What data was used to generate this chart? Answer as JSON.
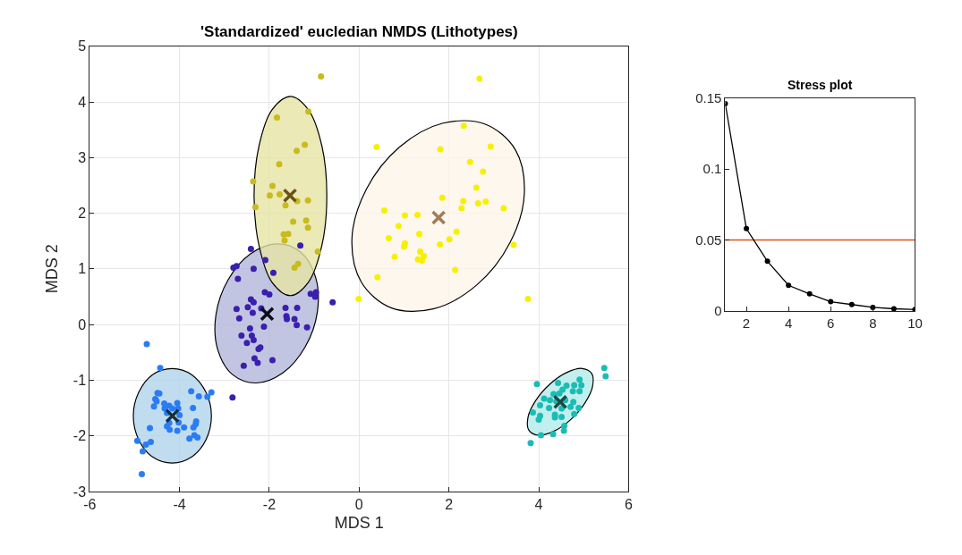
{
  "chart_data": [
    {
      "type": "scatter",
      "title": "'Standardized' eucledian NMDS (Lithotypes)",
      "xlabel": "MDS 1",
      "ylabel": "MDS 2",
      "xlim": [
        -6,
        6
      ],
      "xticks": [
        -6,
        -4,
        -2,
        0,
        2,
        4,
        6
      ],
      "ylim": [
        -3,
        5
      ],
      "yticks": [
        -3,
        -2,
        -1,
        0,
        1,
        2,
        3,
        4,
        5
      ],
      "grid": true,
      "series": [
        {
          "type": "area",
          "color": "#b0d3eb",
          "x": [
            -3.29,
            -3.41,
            -3.73,
            -4.16,
            -4.6,
            -4.91,
            -5.03,
            -4.91,
            -4.6,
            -4.16,
            -3.73,
            -3.41,
            -3.29
          ],
          "values": [
            -1.64,
            -1.22,
            -0.9,
            -0.79,
            -0.9,
            -1.22,
            -1.64,
            -2.07,
            -2.38,
            -2.49,
            -2.38,
            -2.07,
            -1.64
          ]
        },
        {
          "type": "area",
          "color": "#b1b7db",
          "x": [
            -1.3,
            -1.83,
            -2.42,
            -2.92,
            -3.19,
            -3.15,
            -2.82,
            -2.29,
            -1.7,
            -1.2,
            -0.93,
            -0.97,
            -1.3
          ],
          "values": [
            1.3,
            1.45,
            1.27,
            0.8,
            0.17,
            -0.45,
            -0.9,
            -1.05,
            -0.87,
            -0.4,
            0.23,
            0.85,
            1.3
          ]
        },
        {
          "type": "area",
          "color": "#e6e4a4",
          "x": [
            -0.72,
            -0.83,
            -1.13,
            -1.53,
            -1.94,
            -2.23,
            -2.34,
            -2.23,
            -1.94,
            -1.53,
            -1.13,
            -0.83,
            -0.72
          ],
          "values": [
            2.31,
            3.21,
            3.86,
            4.1,
            3.86,
            3.21,
            2.31,
            1.42,
            0.76,
            0.52,
            0.76,
            1.42,
            2.31
          ]
        },
        {
          "type": "area",
          "color": "#fdf5e8",
          "x": [
            3.48,
            2.81,
            1.87,
            0.9,
            0.16,
            -0.16,
            0.05,
            0.71,
            1.65,
            2.62,
            3.36,
            3.68,
            3.48
          ],
          "values": [
            3.14,
            3.6,
            3.62,
            3.19,
            2.43,
            1.54,
            0.76,
            0.3,
            0.28,
            0.71,
            1.47,
            2.36,
            3.14
          ]
        },
        {
          "type": "area",
          "color": "#b2ebe8",
          "x": [
            5.18,
            4.97,
            4.63,
            4.25,
            3.93,
            3.76,
            3.78,
            3.99,
            4.33,
            4.71,
            5.03,
            5.2,
            5.18
          ],
          "values": [
            -0.88,
            -0.79,
            -0.86,
            -1.07,
            -1.37,
            -1.67,
            -1.9,
            -1.99,
            -1.92,
            -1.71,
            -1.41,
            -1.11,
            -0.88
          ]
        },
        {
          "type": "scatter",
          "marker": "circle",
          "color": "#2b7bf6",
          "x": [
            -4.73,
            -4.43,
            -4.49,
            -4.45,
            -4.54,
            -4.51,
            -4.57,
            -4.34,
            -4.23,
            -4.05,
            -4.33,
            -4.16,
            -4.03,
            -4.28,
            -4.0,
            -4.23,
            -4.28,
            -4.22,
            -4.05,
            -4.02,
            -3.9,
            -3.74,
            -3.57,
            -3.38,
            -3.29,
            -3.7,
            -3.63,
            -3.64,
            -3.69,
            -3.67,
            -3.6,
            -3.78,
            -4.66,
            -4.94,
            -4.75,
            -4.64,
            -4.82,
            -4.84
          ],
          "values": [
            -0.35,
            -0.78,
            -1.23,
            -1.24,
            -1.34,
            -1.38,
            -1.47,
            -1.42,
            -1.46,
            -1.41,
            -1.51,
            -1.51,
            -1.51,
            -1.59,
            -1.63,
            -1.77,
            -1.83,
            -1.89,
            -1.91,
            -1.76,
            -1.85,
            -1.2,
            -1.29,
            -1.3,
            -1.22,
            -1.5,
            -1.74,
            -1.79,
            -1.85,
            -1.99,
            -2.03,
            -2.05,
            -1.86,
            -2.09,
            -2.16,
            -2.11,
            -2.28,
            -2.69
          ]
        },
        {
          "type": "scatter",
          "marker": "circle",
          "color": "#3b1fae",
          "x": [
            -2.41,
            -1.31,
            -2.09,
            -2.8,
            -2.73,
            -2.35,
            -1.91,
            -2.7,
            -2.1,
            -2.0,
            -1.08,
            -0.96,
            -0.98,
            -0.59,
            -2.41,
            -2.35,
            -2.73,
            -2.48,
            -2.37,
            -2.18,
            -2.67,
            -1.64,
            -1.38,
            -1.62,
            -1.61,
            -1.44,
            -1.39,
            -1.16,
            -2.12,
            -2.43,
            -2.62,
            -2.39,
            -2.35,
            -2.5,
            -2.24,
            -2.2,
            -2.33,
            -2.26,
            -1.93,
            -2.57,
            -2.82
          ],
          "values": [
            1.36,
            1.42,
            1.16,
            1.02,
            1.05,
            1.0,
            0.93,
            0.82,
            0.58,
            0.54,
            0.55,
            0.58,
            0.5,
            0.4,
            0.45,
            0.4,
            0.28,
            0.31,
            0.21,
            0.29,
            0.11,
            0.3,
            0.3,
            0.15,
            0.1,
            0.1,
            -0.01,
            -0.05,
            -0.04,
            -0.07,
            -0.2,
            -0.2,
            -0.28,
            -0.33,
            -0.44,
            -0.41,
            -0.61,
            -0.69,
            -0.64,
            -0.74,
            -1.31
          ]
        },
        {
          "type": "scatter",
          "marker": "circle",
          "color": "#c8bb1d",
          "x": [
            -0.85,
            -1.13,
            -1.83,
            -1.21,
            -1.39,
            -1.78,
            -2.36,
            -1.93,
            -1.99,
            -1.77,
            -1.38,
            -1.14,
            -1.64,
            -2.31,
            -1.47,
            -1.18,
            -1.14,
            -1.68,
            -1.58,
            -1.66,
            -0.92,
            -1.36,
            -1.44
          ],
          "values": [
            4.46,
            3.83,
            3.72,
            3.23,
            3.12,
            2.88,
            2.57,
            2.49,
            2.32,
            2.34,
            2.22,
            2.23,
            2.14,
            2.11,
            1.85,
            1.87,
            1.74,
            1.62,
            1.63,
            1.51,
            1.31,
            1.09,
            1.02
          ]
        },
        {
          "type": "scatter",
          "marker": "circle",
          "color": "#f7f000",
          "x": [
            2.68,
            2.33,
            0.39,
            1.81,
            2.93,
            2.47,
            2.76,
            2.61,
            1.85,
            2.32,
            2.65,
            2.82,
            2.28,
            3.22,
            0.56,
            1.02,
            1.3,
            0.88,
            1.34,
            2.17,
            0.66,
            1.02,
            1.0,
            2.01,
            1.8,
            1.36,
            1.44,
            1.31,
            1.4,
            0.79,
            2.14,
            3.44,
            0.41,
            -0.01,
            3.76
          ],
          "values": [
            4.42,
            3.57,
            3.19,
            3.15,
            3.2,
            2.92,
            2.75,
            2.46,
            2.28,
            2.22,
            2.18,
            2.21,
            2.09,
            2.09,
            2.05,
            1.96,
            1.97,
            1.77,
            1.63,
            1.67,
            1.55,
            1.46,
            1.4,
            1.53,
            1.44,
            1.31,
            1.23,
            1.17,
            1.15,
            1.22,
            0.98,
            1.43,
            0.85,
            0.46,
            0.46
          ]
        },
        {
          "type": "scatter",
          "marker": "circle",
          "color": "#1cbcb4",
          "x": [
            5.46,
            5.49,
            3.96,
            4.43,
            4.91,
            4.95,
            4.79,
            4.62,
            4.53,
            4.76,
            4.91,
            4.46,
            4.33,
            4.12,
            4.25,
            4.39,
            4.59,
            4.77,
            4.03,
            4.23,
            4.51,
            4.71,
            4.89,
            3.87,
            4.03,
            4.36,
            4.79,
            4.0,
            4.36,
            4.51,
            4.57,
            4.56,
            4.32,
            4.05,
            3.82
          ],
          "values": [
            -0.78,
            -0.93,
            -1.07,
            -1.05,
            -0.99,
            -1.09,
            -1.09,
            -1.1,
            -1.17,
            -1.2,
            -1.2,
            -1.24,
            -1.25,
            -1.33,
            -1.36,
            -1.38,
            -1.36,
            -1.39,
            -1.45,
            -1.5,
            -1.51,
            -1.48,
            -1.5,
            -1.58,
            -1.64,
            -1.62,
            -1.61,
            -1.71,
            -1.67,
            -1.66,
            -1.82,
            -1.91,
            -1.97,
            -1.99,
            -2.13
          ]
        },
        {
          "type": "scatter",
          "marker": "cross",
          "color": "#16303d",
          "x": [
            -4.16
          ],
          "values": [
            -1.64
          ]
        },
        {
          "type": "scatter",
          "marker": "cross",
          "color": "#0d0d1a",
          "x": [
            -2.05
          ],
          "values": [
            0.19
          ]
        },
        {
          "type": "scatter",
          "marker": "cross",
          "color": "#6b5315",
          "x": [
            -1.54
          ],
          "values": [
            2.32
          ]
        },
        {
          "type": "scatter",
          "marker": "cross",
          "color": "#a07c5a",
          "x": [
            1.77
          ],
          "values": [
            1.92
          ]
        },
        {
          "type": "scatter",
          "marker": "cross",
          "color": "#1a4a47",
          "x": [
            4.48
          ],
          "values": [
            -1.39
          ]
        }
      ]
    },
    {
      "type": "line",
      "title": "Stress plot",
      "x": [
        1,
        2,
        3,
        4,
        5,
        6,
        7,
        8,
        9,
        10
      ],
      "xlim": [
        1,
        10
      ],
      "xticks": [
        2,
        4,
        6,
        8,
        10
      ],
      "ylim": [
        0,
        0.15
      ],
      "yticks": [
        0,
        0.05,
        0.1,
        0.15
      ],
      "marker": "circle",
      "series": [
        {
          "color": "#000000",
          "values": [
            0.146,
            0.058,
            0.035,
            0.018,
            0.012,
            0.0065,
            0.0045,
            0.0025,
            0.0015,
            0.001
          ]
        }
      ],
      "ref_lines": [
        {
          "axis": "y",
          "value": 0.05,
          "color": "#d95319"
        }
      ]
    }
  ]
}
